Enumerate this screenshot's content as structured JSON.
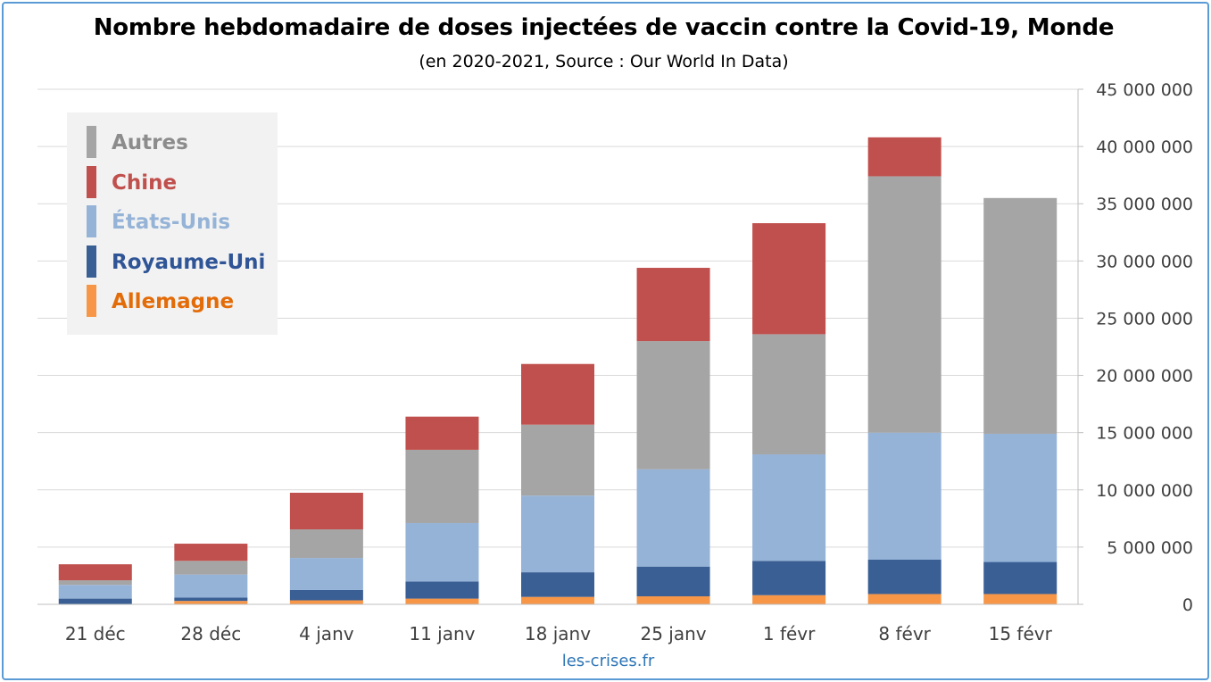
{
  "chart_data": {
    "type": "bar",
    "stacked": true,
    "title": "Nombre hebdomadaire de doses injectées de vaccin contre la Covid-19, Monde",
    "subtitle": "(en 2020-2021, Source : Our World In Data)",
    "source": "les-crises.fr",
    "categories": [
      "21 déc",
      "28 déc",
      "4 janv",
      "11 janv",
      "18 janv",
      "25 janv",
      "1 févr",
      "8 févr",
      "15 févr"
    ],
    "series": [
      {
        "name": "Allemagne",
        "color": "#f79646",
        "values": [
          0,
          300000,
          350000,
          500000,
          650000,
          700000,
          800000,
          900000,
          900000
        ]
      },
      {
        "name": "Royaume-Uni",
        "color": "#3a5f95",
        "values": [
          500000,
          300000,
          900000,
          1500000,
          2150000,
          2600000,
          3000000,
          3000000,
          2800000
        ]
      },
      {
        "name": "États-Unis",
        "color": "#95b3d7",
        "values": [
          1200000,
          2000000,
          2800000,
          5100000,
          6700000,
          8500000,
          9300000,
          11100000,
          11200000
        ]
      },
      {
        "name": "Autres",
        "color": "#a5a5a5",
        "values": [
          400000,
          1200000,
          2500000,
          6400000,
          6200000,
          11200000,
          10500000,
          22400000,
          20600000
        ]
      },
      {
        "name": "Chine",
        "color": "#c0504d",
        "values": [
          1400000,
          1500000,
          3200000,
          2900000,
          5300000,
          6400000,
          9700000,
          3400000,
          0
        ]
      }
    ],
    "legend_order": [
      "Autres",
      "Chine",
      "États-Unis",
      "Royaume-Uni",
      "Allemagne"
    ],
    "legend_position": "top-left",
    "y_axis_position": "right",
    "ylim": [
      0,
      45000000
    ],
    "yticks": [
      0,
      5000000,
      10000000,
      15000000,
      20000000,
      25000000,
      30000000,
      35000000,
      40000000,
      45000000
    ],
    "ytick_labels": [
      "0",
      "5 000 000",
      "10 000 000",
      "15 000 000",
      "20 000 000",
      "25 000 000",
      "30 000 000",
      "35 000 000",
      "40 000 000",
      "45 000 000"
    ],
    "grid": true
  }
}
